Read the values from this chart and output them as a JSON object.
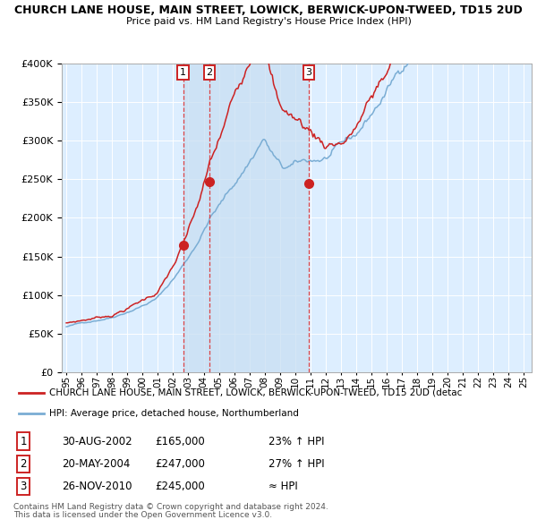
{
  "title_line1": "CHURCH LANE HOUSE, MAIN STREET, LOWICK, BERWICK-UPON-TWEED, TD15 2UD",
  "title_line2": "Price paid vs. HM Land Registry's House Price Index (HPI)",
  "ylim": [
    0,
    400000
  ],
  "xlim_start": 1994.7,
  "xlim_end": 2025.5,
  "hpi_color": "#7aadd4",
  "price_color": "#cc2222",
  "bg_color": "#ddeeff",
  "grid_color": "#ffffff",
  "purchase_dates": [
    2002.66,
    2004.38,
    2010.9
  ],
  "purchase_prices": [
    165000,
    247000,
    245000
  ],
  "purchase_labels": [
    "1",
    "2",
    "3"
  ],
  "legend_line1": "CHURCH LANE HOUSE, MAIN STREET, LOWICK, BERWICK-UPON-TWEED, TD15 2UD (detac",
  "legend_line2": "HPI: Average price, detached house, Northumberland",
  "table_data": [
    [
      "1",
      "30-AUG-2002",
      "£165,000",
      "23% ↑ HPI"
    ],
    [
      "2",
      "20-MAY-2004",
      "£247,000",
      "27% ↑ HPI"
    ],
    [
      "3",
      "26-NOV-2010",
      "£245,000",
      "≈ HPI"
    ]
  ],
  "footnote1": "Contains HM Land Registry data © Crown copyright and database right 2024.",
  "footnote2": "This data is licensed under the Open Government Licence v3.0."
}
